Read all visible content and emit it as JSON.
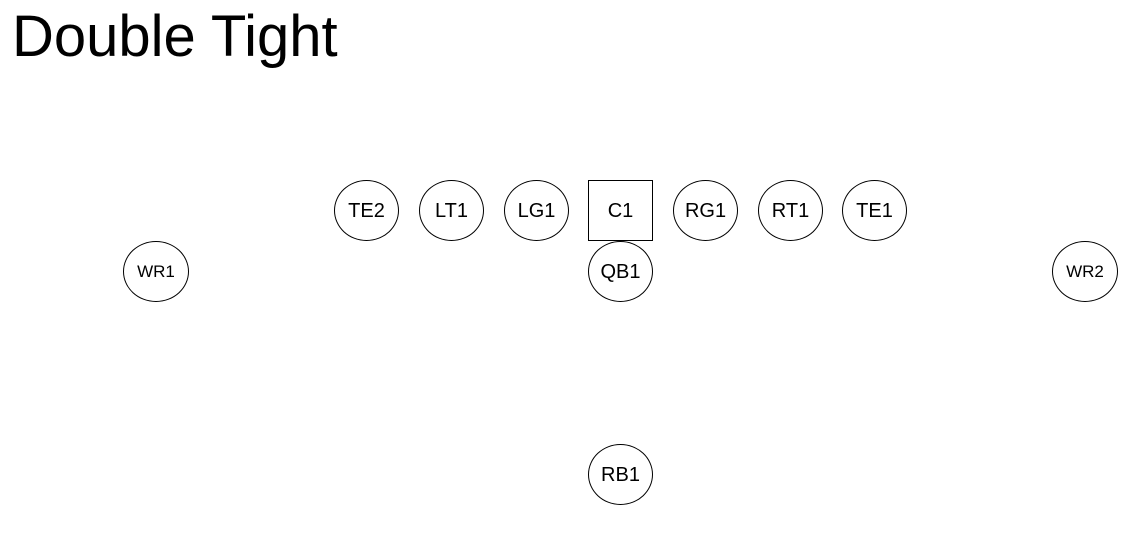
{
  "formation": {
    "title": "Double Tight"
  },
  "players": {
    "te2": "TE2",
    "lt1": "LT1",
    "lg1": "LG1",
    "c1": "C1",
    "rg1": "RG1",
    "rt1": "RT1",
    "te1": "TE1",
    "wr1": "WR1",
    "qb1": "QB1",
    "wr2": "WR2",
    "rb1": "RB1"
  }
}
